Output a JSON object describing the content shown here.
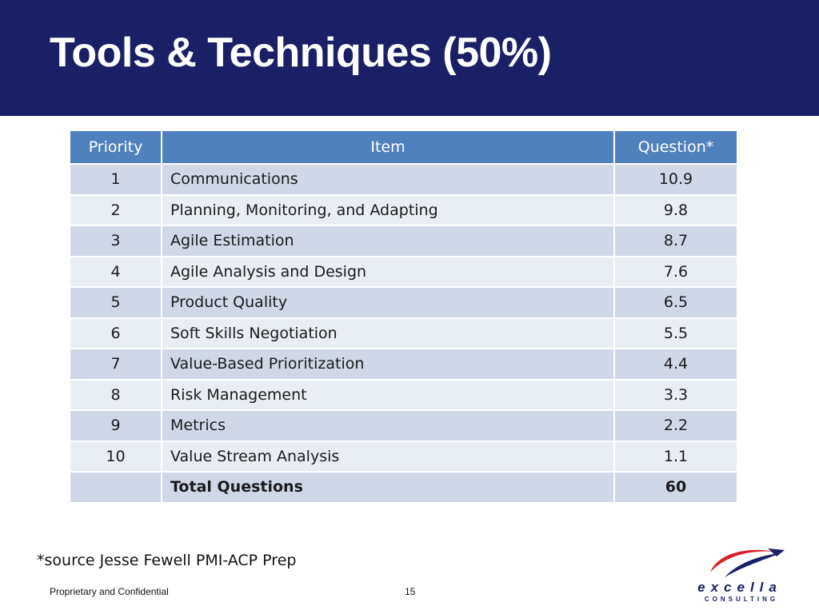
{
  "slide": {
    "title": "Tools & Techniques (50%)",
    "source_note": "*source Jesse Fewell PMI-ACP Prep",
    "footer_left": "Proprietary and Confidential",
    "page_number": "15"
  },
  "table": {
    "headers": [
      "Priority",
      "Item",
      "Question*"
    ],
    "rows": [
      {
        "priority": "1",
        "item": "Communications",
        "question": "10.9"
      },
      {
        "priority": "2",
        "item": "Planning, Monitoring, and Adapting",
        "question": "9.8"
      },
      {
        "priority": "3",
        "item": "Agile Estimation",
        "question": "8.7"
      },
      {
        "priority": "4",
        "item": "Agile Analysis and Design",
        "question": "7.6"
      },
      {
        "priority": "5",
        "item": "Product Quality",
        "question": "6.5"
      },
      {
        "priority": "6",
        "item": "Soft Skills Negotiation",
        "question": "5.5"
      },
      {
        "priority": "7",
        "item": "Value-Based Prioritization",
        "question": "4.4"
      },
      {
        "priority": "8",
        "item": "Risk Management",
        "question": "3.3"
      },
      {
        "priority": "9",
        "item": "Metrics",
        "question": "2.2"
      },
      {
        "priority": "10",
        "item": "Value Stream Analysis",
        "question": "1.1"
      }
    ],
    "total": {
      "label": "Total Questions",
      "value": "60"
    }
  },
  "logo": {
    "name": "excella",
    "subtitle": "CONSULTING",
    "icon": "swoosh-arrow-logo"
  },
  "colors": {
    "title_band": "#1b2066",
    "header": "#4f81bd",
    "row_odd": "#d0d8e8",
    "row_even": "#e9edf4",
    "logo_red": "#d8222a"
  }
}
